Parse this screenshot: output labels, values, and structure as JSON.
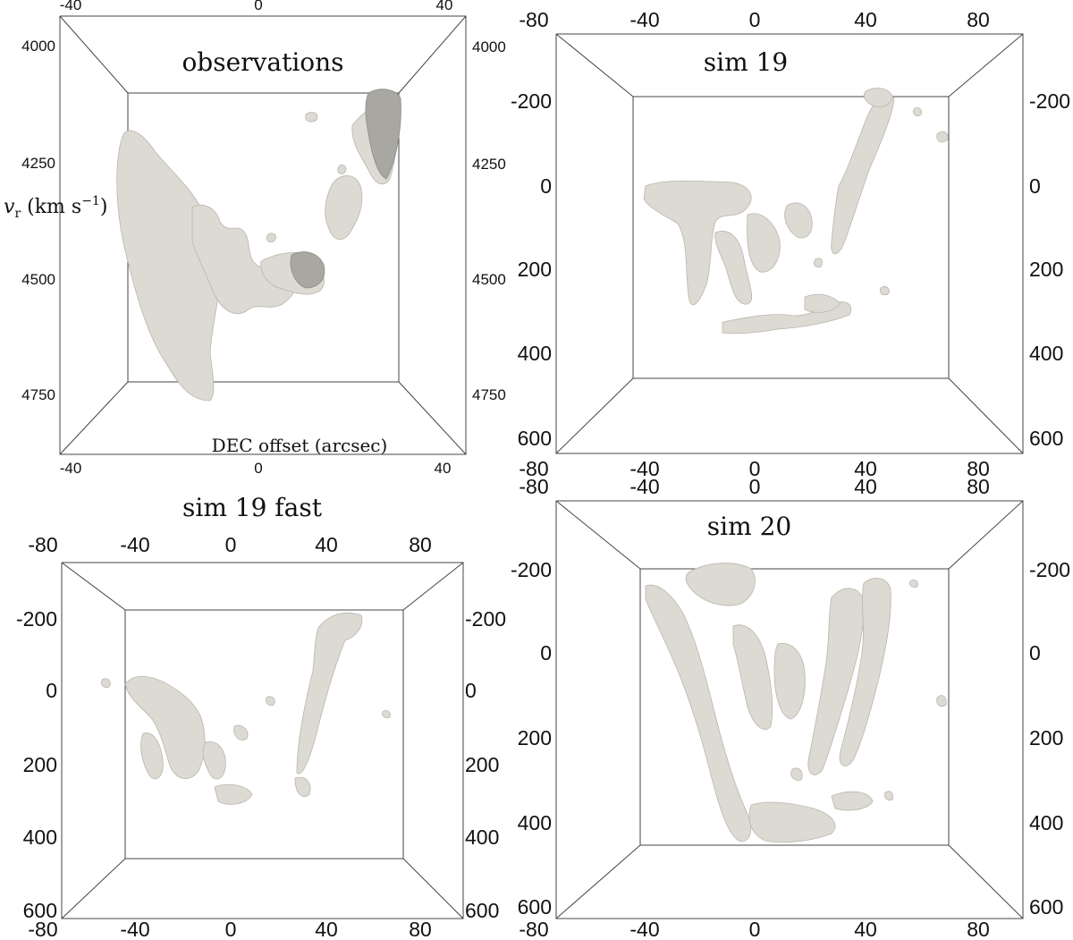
{
  "figure": {
    "background": "#ffffff",
    "isosurface_color": "#dcdad2",
    "shadow_color": "#a9a7a2"
  },
  "chart_data": [
    {
      "type": "scatter",
      "title": "observations",
      "xlabel": "DEC offset (arcsec)",
      "ylabel": "v_r (km s^-1)",
      "x_ticks": [
        "-40",
        "0",
        "40"
      ],
      "y_ticks": [
        "4000",
        "4250",
        "4500",
        "4750"
      ],
      "xlim": [
        -40,
        40
      ],
      "ylim": [
        4000,
        4750
      ],
      "render": "3d isosurface"
    },
    {
      "type": "scatter",
      "title": "sim 19",
      "x_ticks": [
        "-80",
        "-40",
        "0",
        "40",
        "80"
      ],
      "y_ticks": [
        "-200",
        "0",
        "200",
        "400",
        "600"
      ],
      "xlim": [
        -80,
        80
      ],
      "ylim": [
        -200,
        600
      ],
      "render": "3d isosurface"
    },
    {
      "type": "scatter",
      "title": "sim 19 fast",
      "x_ticks": [
        "-80",
        "-40",
        "0",
        "40",
        "80"
      ],
      "y_ticks": [
        "-200",
        "0",
        "200",
        "400",
        "600"
      ],
      "xlim": [
        -80,
        80
      ],
      "ylim": [
        -200,
        600
      ],
      "render": "3d isosurface"
    },
    {
      "type": "scatter",
      "title": "sim 20",
      "x_ticks": [
        "-80",
        "-40",
        "0",
        "40",
        "80"
      ],
      "y_ticks": [
        "-200",
        "0",
        "200",
        "400",
        "600"
      ],
      "xlim": [
        -80,
        80
      ],
      "ylim": [
        -200,
        600
      ],
      "render": "3d isosurface"
    }
  ]
}
